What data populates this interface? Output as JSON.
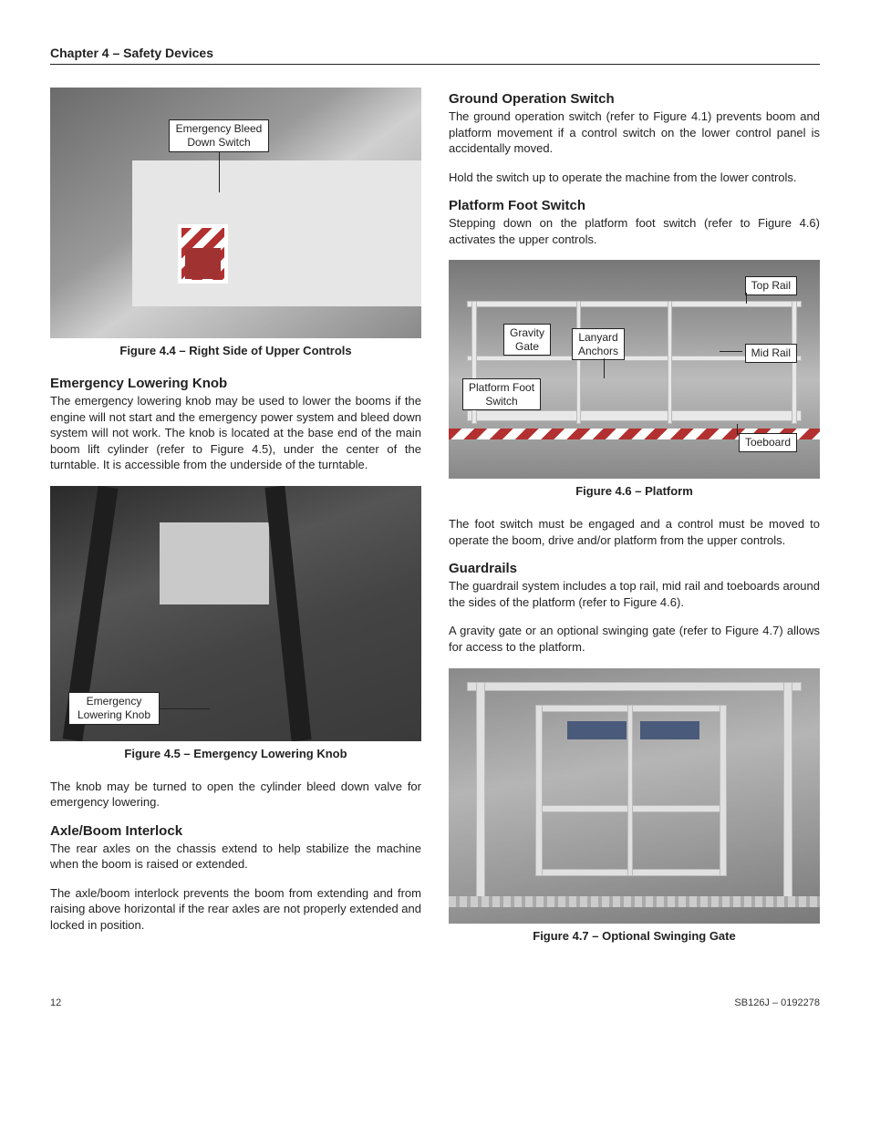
{
  "header": {
    "chapter": "Chapter 4 – Safety Devices"
  },
  "footer": {
    "page": "12",
    "doc": "SB126J – 0192278"
  },
  "left": {
    "fig44": {
      "callout": "Emergency Bleed\nDown Switch",
      "caption": "Figure 4.4 – Right Side of Upper Controls"
    },
    "sec1": {
      "title": "Emergency Lowering Knob",
      "p1": "The emergency lowering knob may be used to lower the booms if the engine will not start and the emergency power system and bleed down system will not work. The knob is located at the base end of the main boom lift cylinder (refer to Figure 4.5), under the center of the turntable. It is accessible from the underside of the turntable."
    },
    "fig45": {
      "callout": "Emergency\nLowering Knob",
      "caption": "Figure 4.5 – Emergency Lowering Knob"
    },
    "sec1b": {
      "p2": "The knob may be turned to open the cylinder bleed down valve for emergency lowering."
    },
    "sec2": {
      "title": "Axle/Boom Interlock",
      "p1": "The rear axles on the chassis extend to help stabilize the machine when the boom is raised or extended.",
      "p2": "The axle/boom interlock prevents the boom from extending and from raising above horizontal if the rear axles are not properly extended and locked in position."
    }
  },
  "right": {
    "sec3": {
      "title": "Ground Operation Switch",
      "p1": "The ground operation switch (refer to Figure 4.1) prevents boom and platform movement if a control switch on the lower control panel is accidentally moved.",
      "p2": "Hold the switch up to operate the machine from the lower controls."
    },
    "sec4": {
      "title": "Platform Foot Switch",
      "p1": "Stepping down on the platform foot switch (refer to Figure 4.6) activates the upper controls."
    },
    "fig46": {
      "callouts": {
        "gravity": "Gravity\nGate",
        "lanyard": "Lanyard\nAnchors",
        "foot": "Platform Foot\nSwitch",
        "top": "Top Rail",
        "mid": "Mid Rail",
        "toe": "Toeboard"
      },
      "caption": "Figure 4.6 – Platform"
    },
    "sec4b": {
      "p2": "The foot switch must be engaged and a control must be moved to operate the boom, drive and/or platform from the upper controls."
    },
    "sec5": {
      "title": "Guardrails",
      "p1": "The guardrail system includes a top rail, mid rail and toeboards around the sides of the platform (refer to Figure 4.6).",
      "p2": "A gravity gate or an optional swinging gate (refer to Figure 4.7) allows for access to the platform."
    },
    "fig47": {
      "caption": "Figure 4.7 – Optional Swinging Gate"
    }
  }
}
